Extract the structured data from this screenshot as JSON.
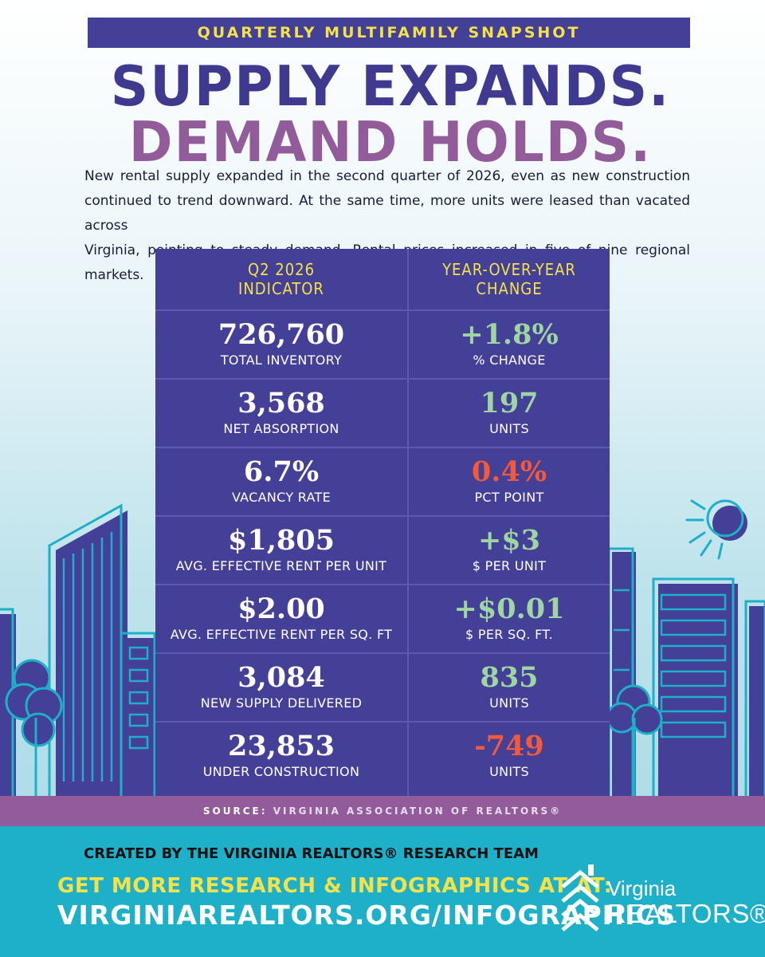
{
  "banner": "QUARTERLY MULTIFAMILY SNAPSHOT",
  "headline": {
    "line1": "SUPPLY EXPANDS.",
    "line2": "DEMAND HOLDS."
  },
  "intro": [
    "New rental supply expanded in the second quarter of 2026, even as new construction",
    "continued to trend downward. At the same time, more units were leased than vacated across",
    "Virginia, pointing to steady demand. Rental prices increased in five of nine regional markets."
  ],
  "table": {
    "header_left": [
      "Q2 2026",
      "INDICATOR"
    ],
    "header_right": [
      "YEAR-OVER-YEAR",
      "CHANGE"
    ],
    "rows": [
      {
        "value": "726,760",
        "label": "TOTAL INVENTORY",
        "change": "+1.8%",
        "change_label": "% CHANGE",
        "change_color": "#9fd5a2"
      },
      {
        "value": "3,568",
        "label": "NET ABSORPTION",
        "change": "197",
        "change_label": "UNITS",
        "change_color": "#9fd5a2"
      },
      {
        "value": "6.7%",
        "label": "VACANCY RATE",
        "change": "0.4%",
        "change_label": "PCT POINT",
        "change_color": "#f25a3b"
      },
      {
        "value": "$1,805",
        "label": "AVG. EFFECTIVE RENT PER UNIT",
        "change": "+$3",
        "change_label": "$ PER UNIT",
        "change_color": "#9fd5a2"
      },
      {
        "value": "$2.00",
        "label": "AVG. EFFECTIVE RENT PER SQ. FT",
        "change": "+$0.01",
        "change_label": "$ PER SQ. FT.",
        "change_color": "#9fd5a2"
      },
      {
        "value": "3,084",
        "label": "NEW SUPPLY DELIVERED",
        "change": "835",
        "change_label": "UNITS",
        "change_color": "#9fd5a2"
      },
      {
        "value": "23,853",
        "label": "UNDER CONSTRUCTION",
        "change": "-749",
        "change_label": "UNITS",
        "change_color": "#f25a3b"
      }
    ]
  },
  "source": {
    "label": "SOURCE:",
    "text": "VIRGINIA ASSOCIATION OF REALTORS®"
  },
  "footer": {
    "credit": "CREATED BY THE VIRGINIA REALTORS® RESEARCH TEAM",
    "cta": "GET MORE RESEARCH & INFOGRAPHICS AT AT:",
    "url": "VIRGINIAREALTORS.ORG/INFOGRAPHICS"
  },
  "logo": {
    "line1": "Virginia",
    "line2": "REALTORS®",
    "icon": "house-stack-icon"
  },
  "colors": {
    "navy": "#443f97",
    "purple": "#925c9b",
    "yellow": "#f4e24a",
    "green": "#9fd5a2",
    "red": "#f25a3b",
    "teal": "#1db0c8"
  }
}
